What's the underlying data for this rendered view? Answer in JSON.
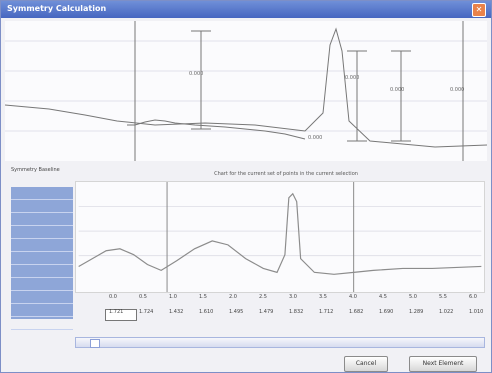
{
  "window": {
    "title": "Symmetry Calculation"
  },
  "top_plot": {
    "labels": [
      "0.000",
      "0.000",
      "0.000",
      "0.000",
      "0.000"
    ]
  },
  "bottom_panel": {
    "label": "Symmetry\nBaseline",
    "title": "Chart for the current set of points in the current selection",
    "tick_values": [
      "0.0",
      "0.5",
      "1.0",
      "1.5",
      "2.0",
      "2.5",
      "3.0",
      "3.5",
      "4.0",
      "4.5",
      "5.0",
      "5.5",
      "6.0"
    ],
    "values": [
      "1.721",
      "1.724",
      "1.432",
      "1.610",
      "1.495",
      "1.479",
      "1.832",
      "1.712",
      "1.682",
      "1.690",
      "1.289",
      "1.022",
      "1.010"
    ],
    "legend_items": [
      "",
      "",
      "",
      "",
      "",
      "",
      "",
      "",
      "",
      "",
      ""
    ]
  },
  "buttons": {
    "cancel": "Cancel",
    "next": "Next Element"
  }
}
